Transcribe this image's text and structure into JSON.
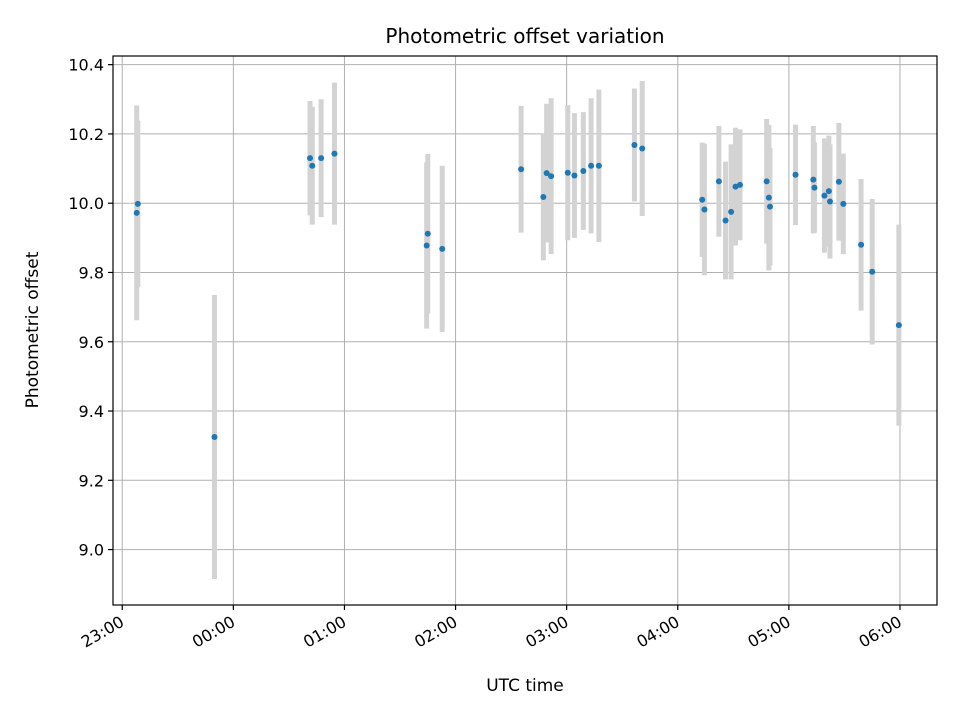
{
  "chart_data": {
    "type": "scatter",
    "title": "Photometric offset variation",
    "xlabel": "UTC time",
    "ylabel": "Photometric offset",
    "grid": true,
    "xlim_hours": [
      -1.0833,
      6.3333
    ],
    "ylim": [
      8.84,
      10.425
    ],
    "x_ticks": [
      {
        "hour": -1,
        "label": "23:00"
      },
      {
        "hour": 0,
        "label": "00:00"
      },
      {
        "hour": 1,
        "label": "01:00"
      },
      {
        "hour": 2,
        "label": "02:00"
      },
      {
        "hour": 3,
        "label": "03:00"
      },
      {
        "hour": 4,
        "label": "04:00"
      },
      {
        "hour": 5,
        "label": "05:00"
      },
      {
        "hour": 6,
        "label": "06:00"
      }
    ],
    "y_ticks": [
      {
        "value": 9.0,
        "label": "9.0"
      },
      {
        "value": 9.2,
        "label": "9.2"
      },
      {
        "value": 9.4,
        "label": "9.4"
      },
      {
        "value": 9.6,
        "label": "9.6"
      },
      {
        "value": 9.8,
        "label": "9.8"
      },
      {
        "value": 10.0,
        "label": "10.0"
      },
      {
        "value": 10.2,
        "label": "10.2"
      },
      {
        "value": 10.4,
        "label": "10.4"
      }
    ],
    "colors": {
      "point": "#1f77b4",
      "errorbar": "#d3d3d3",
      "grid": "#b0b0b0",
      "axis": "#000000"
    },
    "points": [
      {
        "hour": -0.87,
        "y": 9.972,
        "err": 0.31
      },
      {
        "hour": -0.86,
        "y": 9.998,
        "err": 0.24
      },
      {
        "hour": -0.17,
        "y": 9.325,
        "err": 0.41
      },
      {
        "hour": 0.69,
        "y": 10.13,
        "err": 0.165
      },
      {
        "hour": 0.71,
        "y": 10.108,
        "err": 0.17
      },
      {
        "hour": 0.79,
        "y": 10.13,
        "err": 0.17
      },
      {
        "hour": 0.91,
        "y": 10.143,
        "err": 0.205
      },
      {
        "hour": 1.74,
        "y": 9.878,
        "err": 0.24
      },
      {
        "hour": 1.75,
        "y": 9.912,
        "err": 0.23
      },
      {
        "hour": 1.88,
        "y": 9.868,
        "err": 0.24
      },
      {
        "hour": 2.59,
        "y": 10.098,
        "err": 0.183
      },
      {
        "hour": 2.79,
        "y": 10.018,
        "err": 0.183
      },
      {
        "hour": 2.82,
        "y": 10.087,
        "err": 0.2
      },
      {
        "hour": 2.86,
        "y": 10.078,
        "err": 0.225
      },
      {
        "hour": 3.01,
        "y": 10.088,
        "err": 0.195
      },
      {
        "hour": 3.07,
        "y": 10.08,
        "err": 0.18
      },
      {
        "hour": 3.15,
        "y": 10.093,
        "err": 0.17
      },
      {
        "hour": 3.22,
        "y": 10.108,
        "err": 0.195
      },
      {
        "hour": 3.29,
        "y": 10.108,
        "err": 0.22
      },
      {
        "hour": 3.61,
        "y": 10.168,
        "err": 0.163
      },
      {
        "hour": 3.68,
        "y": 10.158,
        "err": 0.195
      },
      {
        "hour": 4.22,
        "y": 10.01,
        "err": 0.165
      },
      {
        "hour": 4.24,
        "y": 9.982,
        "err": 0.19
      },
      {
        "hour": 4.37,
        "y": 10.063,
        "err": 0.16
      },
      {
        "hour": 4.43,
        "y": 9.95,
        "err": 0.17
      },
      {
        "hour": 4.48,
        "y": 9.975,
        "err": 0.195
      },
      {
        "hour": 4.52,
        "y": 10.048,
        "err": 0.17
      },
      {
        "hour": 4.56,
        "y": 10.053,
        "err": 0.16
      },
      {
        "hour": 4.8,
        "y": 10.063,
        "err": 0.18
      },
      {
        "hour": 4.82,
        "y": 10.016,
        "err": 0.21
      },
      {
        "hour": 4.83,
        "y": 9.99,
        "err": 0.17
      },
      {
        "hour": 5.06,
        "y": 10.082,
        "err": 0.145
      },
      {
        "hour": 5.22,
        "y": 10.068,
        "err": 0.155
      },
      {
        "hour": 5.23,
        "y": 10.045,
        "err": 0.13
      },
      {
        "hour": 5.32,
        "y": 10.022,
        "err": 0.165
      },
      {
        "hour": 5.36,
        "y": 10.035,
        "err": 0.16
      },
      {
        "hour": 5.37,
        "y": 10.005,
        "err": 0.165
      },
      {
        "hour": 5.45,
        "y": 10.062,
        "err": 0.17
      },
      {
        "hour": 5.49,
        "y": 9.998,
        "err": 0.145
      },
      {
        "hour": 5.65,
        "y": 9.88,
        "err": 0.19
      },
      {
        "hour": 5.75,
        "y": 9.802,
        "err": 0.21
      },
      {
        "hour": 5.99,
        "y": 9.648,
        "err": 0.29
      }
    ]
  }
}
